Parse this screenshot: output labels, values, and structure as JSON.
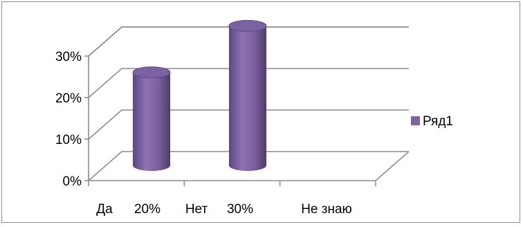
{
  "chart_data": {
    "type": "bar",
    "style": "3d-cylinder",
    "categories": [
      "Да",
      "20%",
      "Нет",
      "30%",
      "Не знаю"
    ],
    "series": [
      {
        "name": "Ряд1",
        "values": [
          0.2,
          null,
          0.3,
          null,
          null
        ]
      }
    ],
    "ylim": [
      0,
      0.3
    ],
    "y_ticks": [
      {
        "value": 0,
        "label": "0%"
      },
      {
        "value": 0.1,
        "label": "10%"
      },
      {
        "value": 0.2,
        "label": "20%"
      },
      {
        "value": 0.3,
        "label": "30%"
      }
    ],
    "grid": true,
    "legend": "right",
    "colors": {
      "bar": "#8064a2",
      "grid": "#8c8c8c"
    }
  }
}
